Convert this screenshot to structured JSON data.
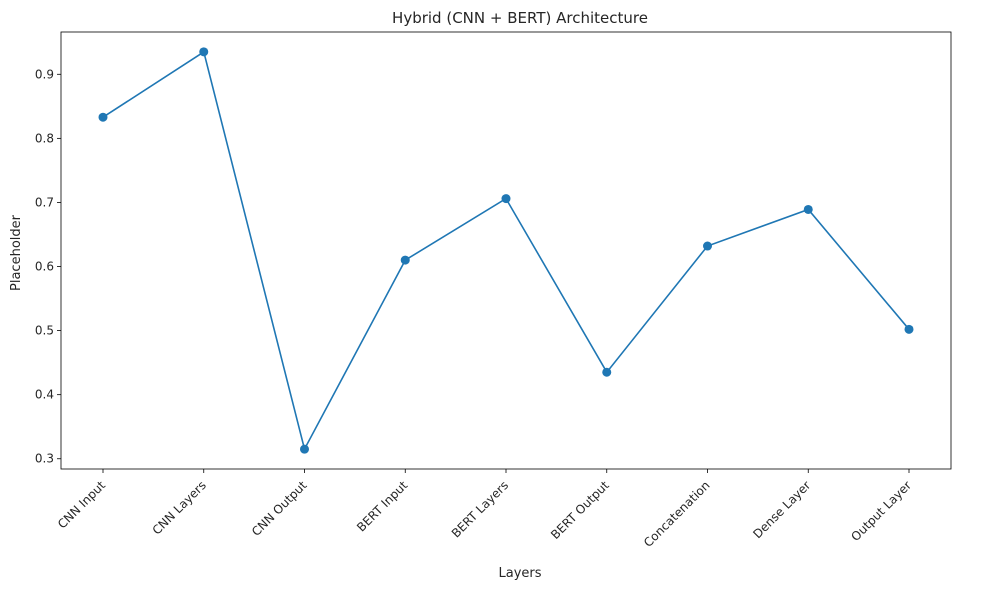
{
  "chart_data": {
    "type": "line",
    "title": "Hybrid (CNN + BERT) Architecture",
    "xlabel": "Layers",
    "ylabel": "Placeholder",
    "categories": [
      "CNN Input",
      "CNN Layers",
      "CNN Output",
      "BERT Input",
      "BERT Layers",
      "BERT Output",
      "Concatenation",
      "Dense Layer",
      "Output Layer"
    ],
    "series": [
      {
        "values": [
          0.833,
          0.935,
          0.315,
          0.61,
          0.706,
          0.435,
          0.632,
          0.689,
          0.502
        ],
        "color": "#1f77b4",
        "marker": "circle"
      }
    ],
    "ylim": [
      0.284,
      0.966
    ],
    "yticks": [
      0.3,
      0.4,
      0.5,
      0.6,
      0.7,
      0.8,
      0.9
    ],
    "ytick_labels": [
      "0.3",
      "0.4",
      "0.5",
      "0.6",
      "0.7",
      "0.8",
      "0.9"
    ],
    "grid": false,
    "legend": "none"
  }
}
